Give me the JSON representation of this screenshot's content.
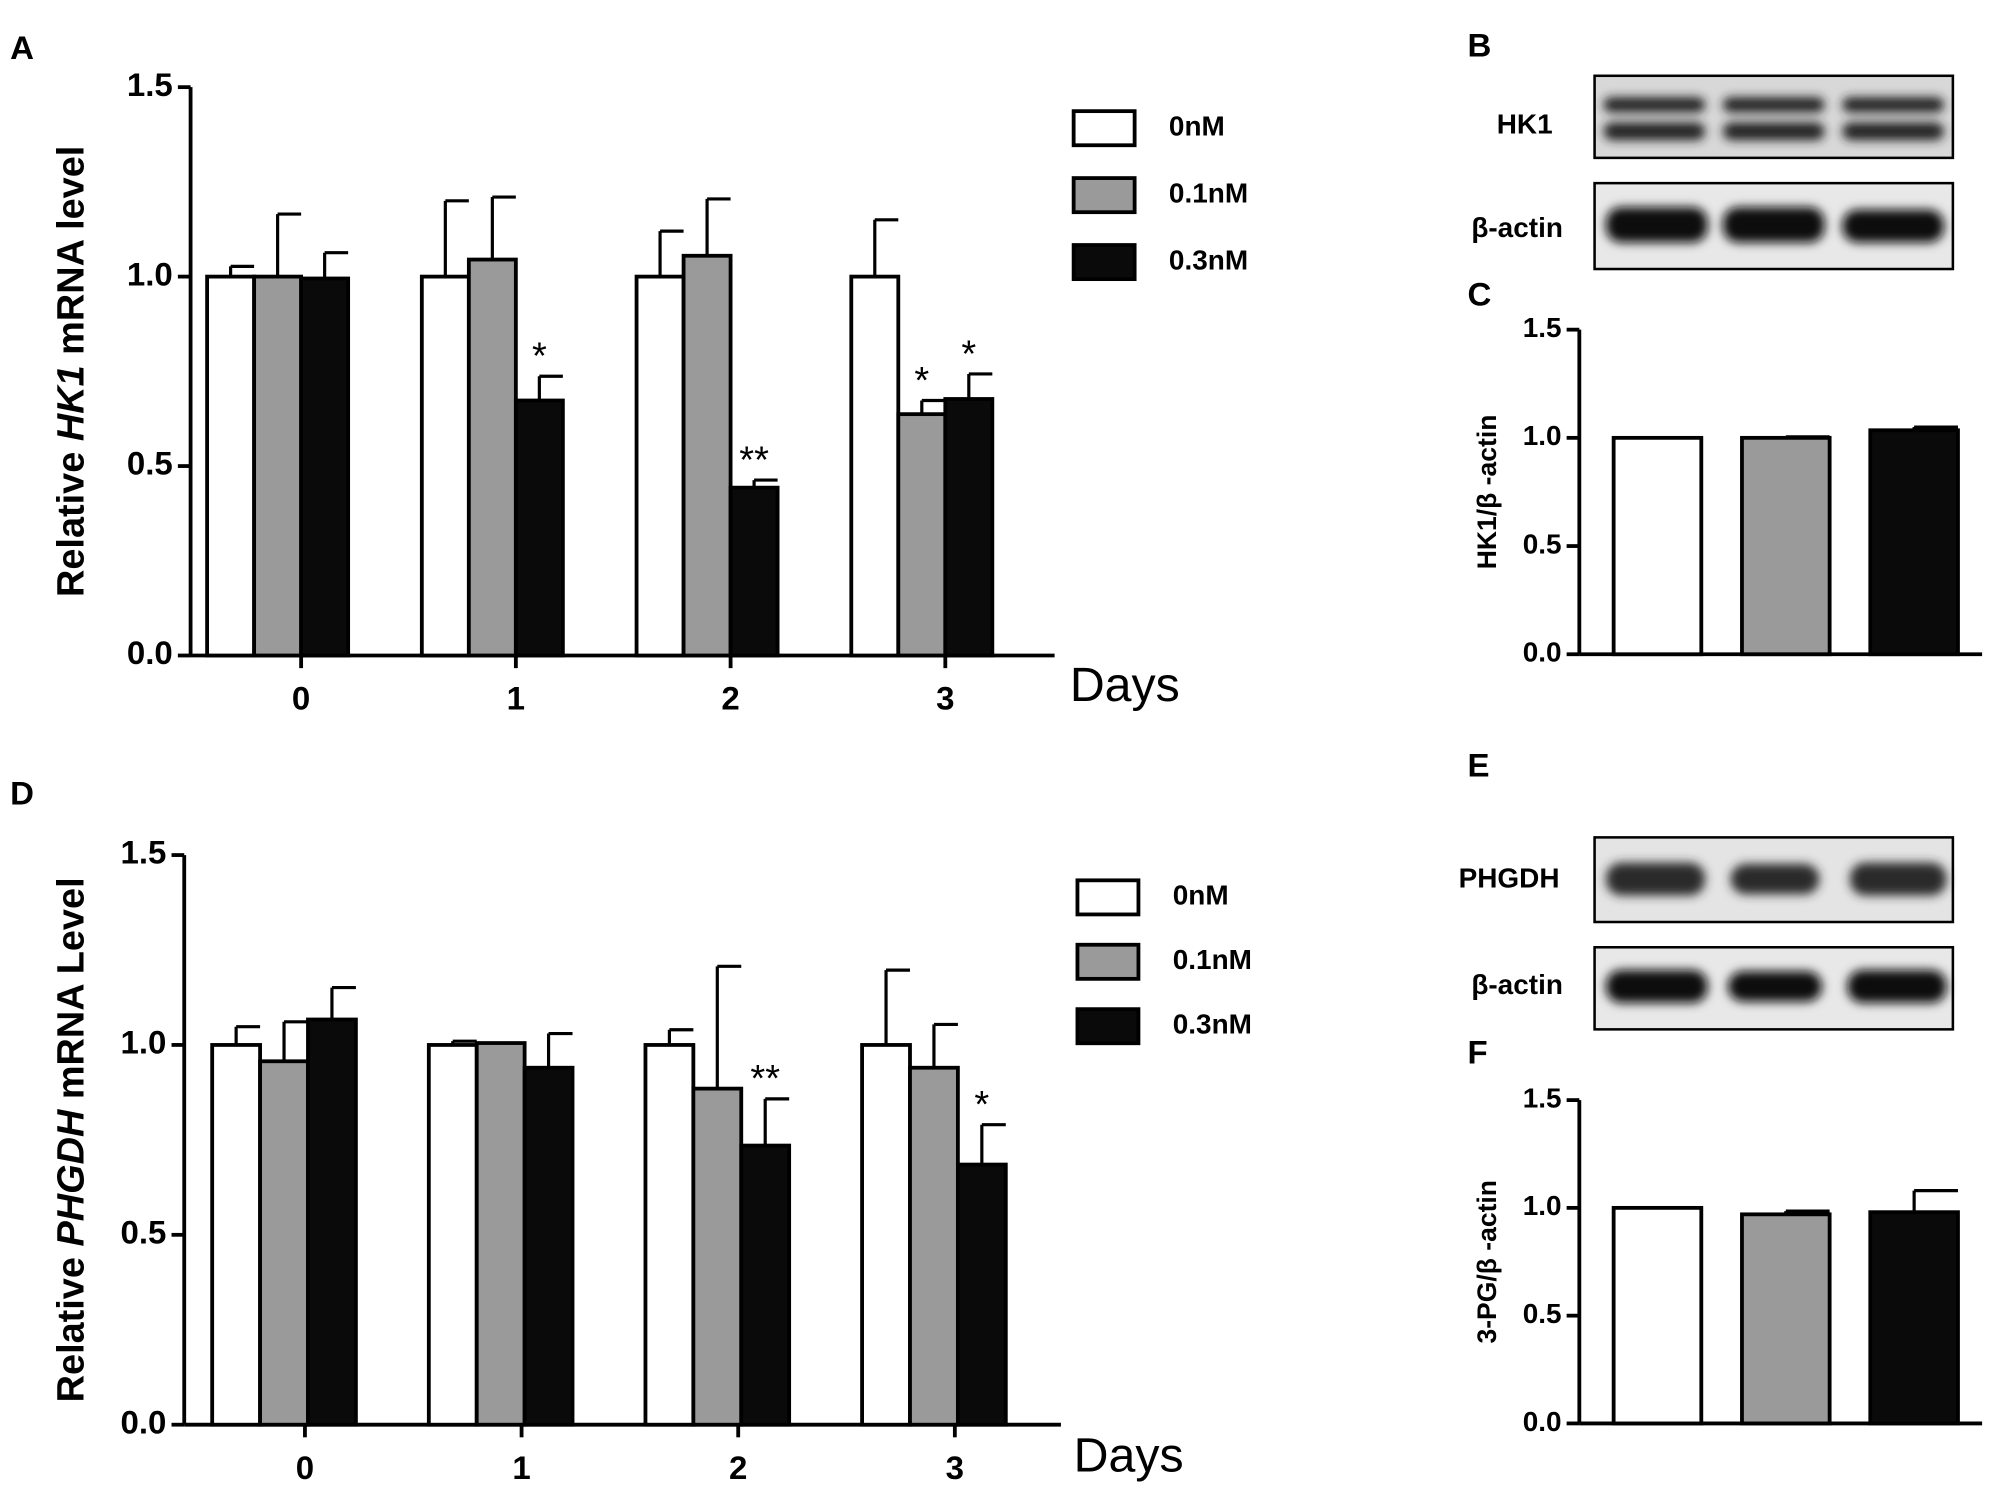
{
  "chart_data": [
    {
      "type": "bar",
      "panel": "A",
      "ylabel": [
        "Relative ",
        "HK1",
        " mRNA level"
      ],
      "xlabel": "Days",
      "legend": true,
      "categories": [
        "0",
        "1",
        "2",
        "3"
      ],
      "series": [
        {
          "name": "0nM",
          "color": "#ffffff",
          "values": [
            1.0,
            1.0,
            1.0,
            1.0
          ],
          "errors": [
            0.027,
            0.2,
            0.12,
            0.15
          ],
          "significance": [
            null,
            null,
            null,
            null
          ]
        },
        {
          "name": "0.1nM",
          "color": "#9a9a9a",
          "values": [
            1.0,
            1.045,
            1.055,
            0.637
          ],
          "errors": [
            0.165,
            0.165,
            0.15,
            0.036
          ],
          "significance": [
            null,
            null,
            null,
            "*"
          ]
        },
        {
          "name": "0.3nM",
          "color": "#0a0a0a",
          "values": [
            0.995,
            0.673,
            0.443,
            0.677
          ],
          "errors": [
            0.068,
            0.064,
            0.02,
            0.066
          ],
          "significance": [
            null,
            "*",
            "**",
            "*"
          ]
        }
      ],
      "ylim": [
        0,
        1.5
      ],
      "yticks": [
        {
          "value": 0,
          "label": "0.0"
        },
        0.5,
        {
          "value": 1,
          "label": "1.0"
        },
        1.5
      ]
    },
    {
      "type": "bar",
      "panel": "C",
      "ylabel": [
        "HK1/β -actin"
      ],
      "legend": false,
      "categories": [
        null
      ],
      "series": [
        {
          "name": "0nM",
          "color": "#ffffff",
          "values": [
            1.0
          ],
          "errors": [
            0
          ],
          "significance": [
            null
          ]
        },
        {
          "name": "0.1nM",
          "color": "#9a9a9a",
          "values": [
            1.0
          ],
          "errors": [
            0.005
          ],
          "significance": [
            null
          ]
        },
        {
          "name": "0.3nM",
          "color": "#0a0a0a",
          "values": [
            1.035
          ],
          "errors": [
            0.015
          ],
          "significance": [
            null
          ]
        }
      ],
      "ylim": [
        0,
        1.5
      ],
      "yticks": [
        {
          "value": 0,
          "label": "0.0"
        },
        0.5,
        {
          "value": 1,
          "label": "1.0"
        },
        1.5
      ]
    },
    {
      "type": "bar",
      "panel": "D",
      "ylabel": [
        "Relative ",
        "PHGDH",
        " mRNA Level"
      ],
      "xlabel": "Days",
      "legend": true,
      "categories": [
        "0",
        "1",
        "2",
        "3"
      ],
      "series": [
        {
          "name": "0nM",
          "color": "#ffffff",
          "values": [
            1.0,
            1.0,
            1.0,
            1.0
          ],
          "errors": [
            0.048,
            0.01,
            0.04,
            0.197
          ],
          "significance": [
            null,
            null,
            null,
            null
          ]
        },
        {
          "name": "0.1nM",
          "color": "#9a9a9a",
          "values": [
            0.957,
            1.005,
            0.885,
            0.94
          ],
          "errors": [
            0.104,
            0,
            0.322,
            0.114
          ],
          "significance": [
            null,
            null,
            null,
            null
          ]
        },
        {
          "name": "0.3nM",
          "color": "#0a0a0a",
          "values": [
            1.067,
            0.94,
            0.735,
            0.685
          ],
          "errors": [
            0.084,
            0.09,
            0.123,
            0.105
          ],
          "significance": [
            null,
            null,
            "**",
            "*"
          ]
        }
      ],
      "ylim": [
        0,
        1.5
      ],
      "yticks": [
        {
          "value": 0,
          "label": "0.0"
        },
        0.5,
        {
          "value": 1,
          "label": "1.0"
        },
        1.5
      ]
    },
    {
      "type": "bar",
      "panel": "F",
      "ylabel": [
        "3-PG/β -actin"
      ],
      "legend": false,
      "categories": [
        null
      ],
      "series": [
        {
          "name": "0nM",
          "color": "#ffffff",
          "values": [
            1.0
          ],
          "errors": [
            0
          ],
          "significance": [
            null
          ]
        },
        {
          "name": "0.1nM",
          "color": "#9a9a9a",
          "values": [
            0.97
          ],
          "errors": [
            0.015
          ],
          "significance": [
            null
          ]
        },
        {
          "name": "0.3nM",
          "color": "#0a0a0a",
          "values": [
            0.98
          ],
          "errors": [
            0.1
          ],
          "significance": [
            null
          ]
        }
      ],
      "ylim": [
        0,
        1.5
      ],
      "yticks": [
        {
          "value": 0,
          "label": "0.0"
        },
        0.5,
        {
          "value": 1,
          "label": "1.0"
        },
        1.5
      ]
    }
  ],
  "blots": [
    {
      "panel": "B",
      "labels": [
        "HK1",
        "β-actin"
      ]
    },
    {
      "panel": "E",
      "labels": [
        "PHGDH",
        "β-actin"
      ]
    }
  ]
}
